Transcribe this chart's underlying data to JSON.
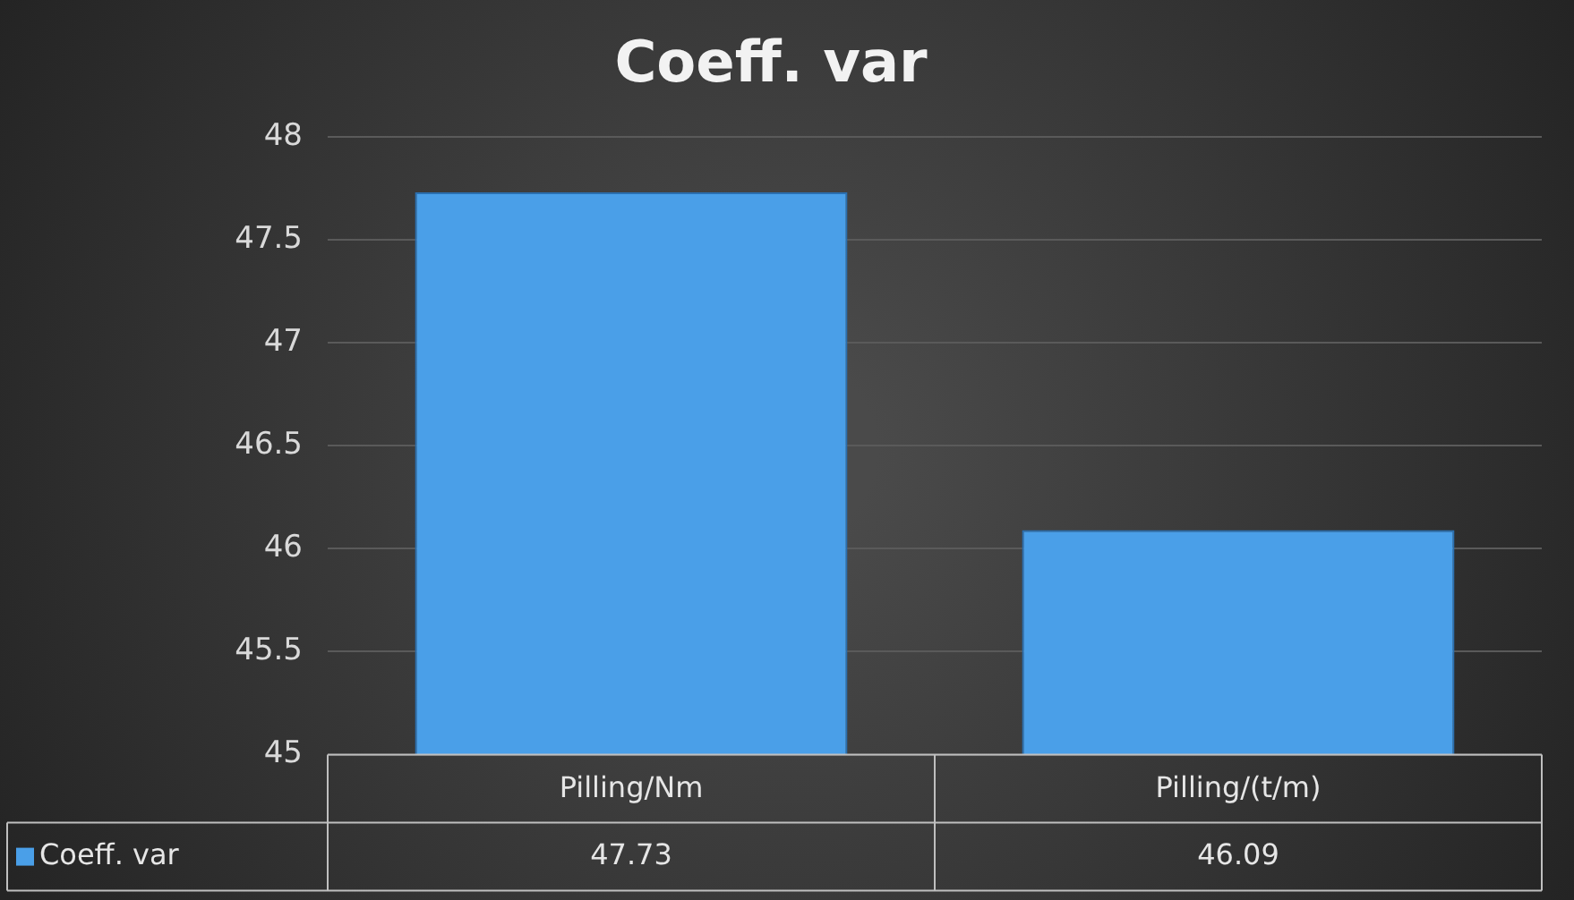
{
  "chart_data": {
    "type": "bar",
    "title": "Coeff. var",
    "categories": [
      "Pilling/Nm",
      "Pilling/(t/m)"
    ],
    "series": [
      {
        "name": "Coeff. var",
        "color": "#4a9fe8",
        "values": [
          47.73,
          46.09
        ]
      }
    ],
    "ylim": [
      45,
      48
    ],
    "yticks": [
      45,
      45.5,
      46,
      46.5,
      47,
      47.5,
      48
    ],
    "grid": "y",
    "data_labels": true,
    "legend": "bottom"
  }
}
